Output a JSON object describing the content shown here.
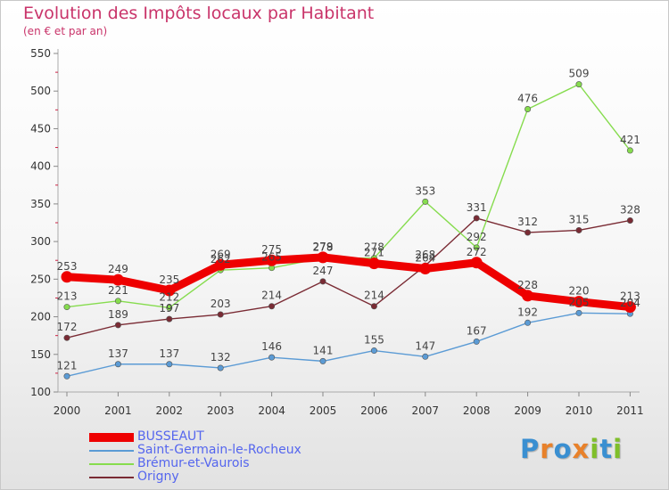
{
  "header": {
    "title": "Evolution des Impôts locaux par Habitant",
    "subtitle": "(en € et par an)"
  },
  "logo": {
    "letters": [
      "P",
      "r",
      "o",
      "x",
      "i",
      "t",
      "i"
    ],
    "colors": [
      "#3a8fd1",
      "#e8812a",
      "#3a8fd1",
      "#e8812a",
      "#7fbf2a",
      "#3a8fd1",
      "#7fbf2a"
    ]
  },
  "chart_data": {
    "type": "line",
    "title": "Evolution des Impôts locaux par Habitant",
    "subtitle": "(en € et par an)",
    "x": [
      "2000",
      "2001",
      "2002",
      "2003",
      "2004",
      "2005",
      "2006",
      "2007",
      "2008",
      "2009",
      "2010",
      "2011"
    ],
    "ylim": [
      100,
      550
    ],
    "yticks": [
      100,
      150,
      200,
      250,
      300,
      350,
      400,
      450,
      500,
      550
    ],
    "grid": false,
    "legend": "bottom-left",
    "series": [
      {
        "name": "BUSSEAUT",
        "color": "#ee0000",
        "values": [
          253,
          249,
          235,
          269,
          275,
          279,
          271,
          264,
          272,
          228,
          220,
          213
        ],
        "labels": [
          "253",
          "249",
          "235",
          "269",
          "275",
          "279",
          "271",
          "264",
          "272",
          "228",
          "220",
          "213"
        ]
      },
      {
        "name": "Saint-Germain-le-Rocheux",
        "color": "#5b9bd5",
        "values": [
          121,
          137,
          137,
          132,
          146,
          141,
          155,
          147,
          167,
          192,
          205,
          204
        ],
        "labels": [
          "121",
          "137",
          "137",
          "132",
          "146",
          "141",
          "155",
          "147",
          "167",
          "192",
          "205",
          "204"
        ]
      },
      {
        "name": "Brémur-et-Vaurois",
        "color": "#86dc4e",
        "values": [
          213,
          221,
          212,
          262,
          265,
          278,
          278,
          353,
          292,
          476,
          509,
          421
        ],
        "labels": [
          "213",
          "221",
          "212",
          "262",
          "265",
          "278",
          "278",
          "353",
          "292",
          "476",
          "509",
          "421"
        ]
      },
      {
        "name": "Origny",
        "color": "#7a2b34",
        "values": [
          172,
          189,
          197,
          203,
          214,
          247,
          214,
          268,
          331,
          312,
          315,
          328
        ],
        "labels": [
          "172",
          "189",
          "197",
          "203",
          "214",
          "247",
          "214",
          "268",
          "331",
          "312",
          "315",
          "328"
        ]
      }
    ]
  }
}
